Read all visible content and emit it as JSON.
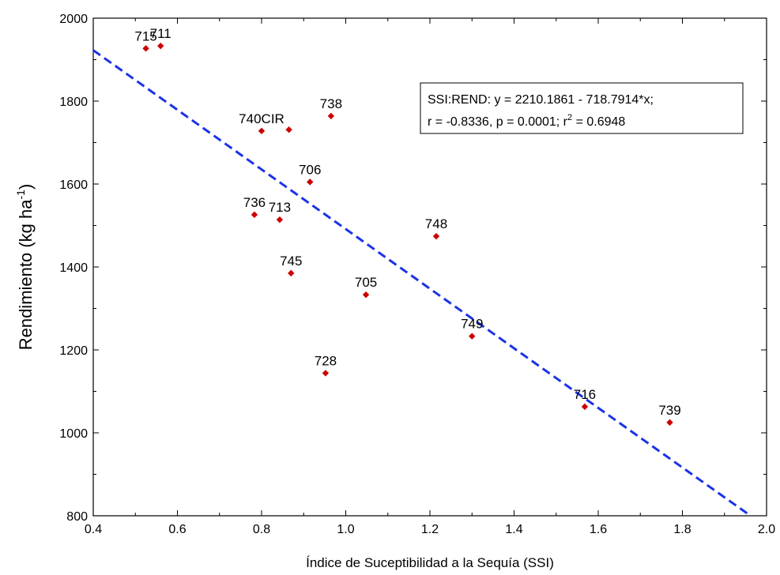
{
  "chart_data": {
    "type": "scatter",
    "xlabel": "Índice de Suceptibilidad a la Sequía (SSI)",
    "ylabel_main": "Rendimiento (kg ha",
    "ylabel_sup": "-1",
    "ylabel_close": ")",
    "xlim": [
      0.4,
      2.0
    ],
    "ylim": [
      800,
      2000
    ],
    "x_ticks": [
      0.4,
      0.6,
      0.8,
      1.0,
      1.2,
      1.4,
      1.6,
      1.8,
      2.0
    ],
    "x_tick_labels": [
      "0.4",
      "0.6",
      "0.8",
      "1.0",
      "1.2",
      "1.4",
      "1.6",
      "1.8",
      "2.0"
    ],
    "y_ticks": [
      800,
      1000,
      1200,
      1400,
      1600,
      1800,
      2000
    ],
    "y_tick_labels": [
      "800",
      "1000",
      "1200",
      "1400",
      "1600",
      "1800",
      "2000"
    ],
    "grid": false,
    "marker_color": "#cc0000",
    "trendline_color": "#1a33e6",
    "points": [
      {
        "label": "715",
        "x": 0.525,
        "y": 1927
      },
      {
        "label": "711",
        "x": 0.56,
        "y": 1933
      },
      {
        "label": "740CIR",
        "x": 0.8,
        "y": 1728
      },
      {
        "label": "",
        "x": 0.865,
        "y": 1731
      },
      {
        "label": "738",
        "x": 0.965,
        "y": 1764
      },
      {
        "label": "706",
        "x": 0.915,
        "y": 1605
      },
      {
        "label": "736",
        "x": 0.783,
        "y": 1526
      },
      {
        "label": "713",
        "x": 0.843,
        "y": 1514
      },
      {
        "label": "748",
        "x": 1.215,
        "y": 1474
      },
      {
        "label": "745",
        "x": 0.87,
        "y": 1385
      },
      {
        "label": "705",
        "x": 1.048,
        "y": 1333
      },
      {
        "label": "749",
        "x": 1.3,
        "y": 1233
      },
      {
        "label": "728",
        "x": 0.952,
        "y": 1144
      },
      {
        "label": "716",
        "x": 1.568,
        "y": 1063
      },
      {
        "label": "739",
        "x": 1.77,
        "y": 1025
      }
    ],
    "regression": {
      "intercept": 2210.1861,
      "slope": -718.7914,
      "line1": "SSI:REND:   y = 2210.1861 - 718.7914*x;",
      "line2_a": "r = -0.8336, p = 0.0001; r",
      "line2_sup": "2",
      "line2_b": " = 0.6948"
    }
  }
}
